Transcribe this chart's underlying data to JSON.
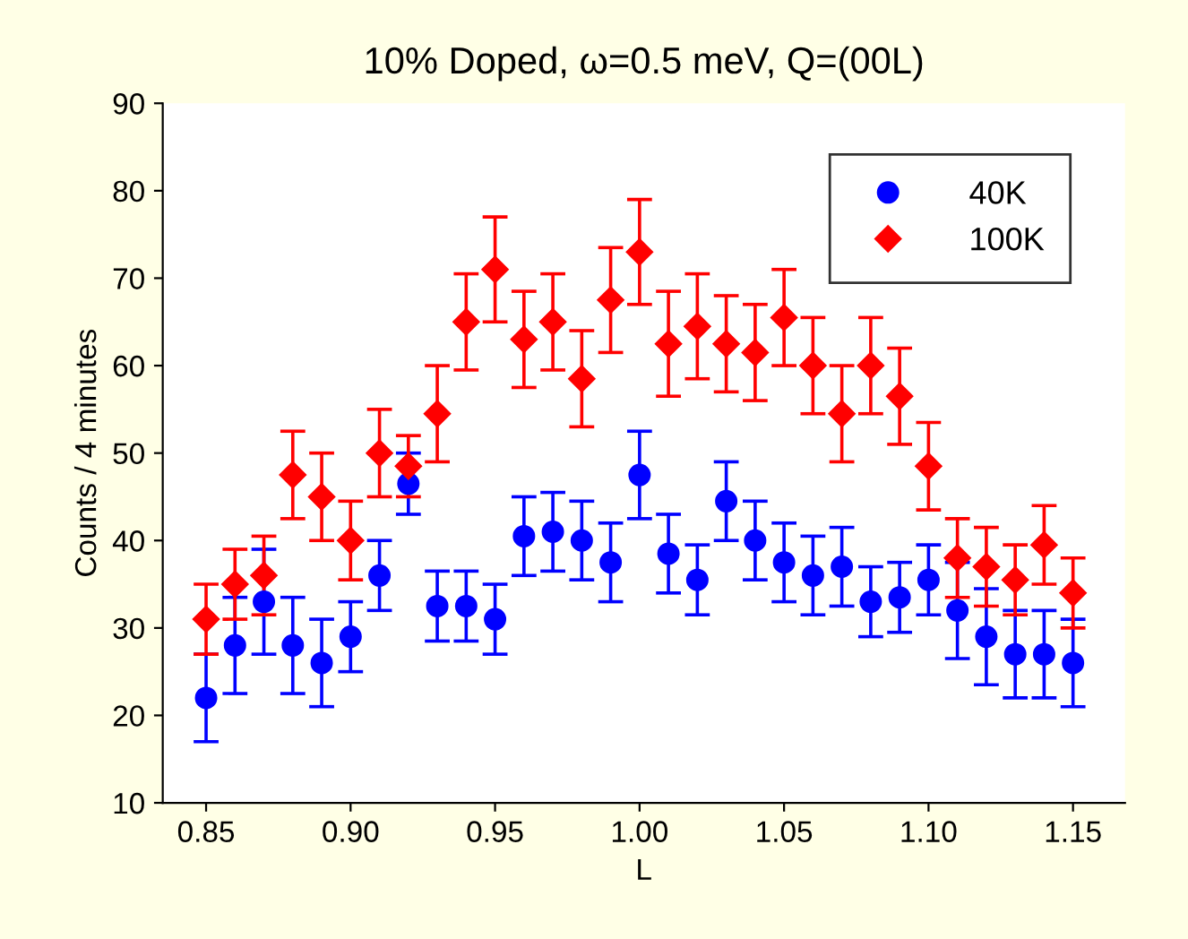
{
  "chart_data": {
    "type": "scatter",
    "title": "10% Doped, ω=0.5 meV, Q=(00L)",
    "xlabel": "L",
    "ylabel": "Counts / 4 minutes",
    "x": [
      0.85,
      0.86,
      0.87,
      0.88,
      0.89,
      0.9,
      0.91,
      0.92,
      0.93,
      0.94,
      0.95,
      0.96,
      0.97,
      0.98,
      0.99,
      1.0,
      1.01,
      1.02,
      1.03,
      1.04,
      1.05,
      1.06,
      1.07,
      1.08,
      1.09,
      1.1,
      1.11,
      1.12,
      1.13,
      1.14,
      1.15
    ],
    "series": [
      {
        "name": "40K",
        "color": "#0000ff",
        "marker": "circle",
        "values": [
          22,
          28,
          33,
          28,
          26,
          29,
          36,
          46.5,
          32.5,
          32.5,
          31,
          40.5,
          41,
          40,
          37.5,
          47.5,
          38.5,
          35.5,
          44.5,
          40,
          37.5,
          36,
          37,
          33,
          33.5,
          35.5,
          32,
          29,
          27,
          27,
          26
        ],
        "errors": [
          5,
          5.5,
          6,
          5.5,
          5,
          4,
          4,
          3.5,
          4,
          4,
          4,
          4.5,
          4.5,
          4.5,
          4.5,
          5,
          4.5,
          4,
          4.5,
          4.5,
          4.5,
          4.5,
          4.5,
          4,
          4,
          4,
          5.5,
          5.5,
          5,
          5,
          5
        ]
      },
      {
        "name": "100K",
        "color": "#ff0000",
        "marker": "diamond",
        "values": [
          31,
          35,
          36,
          47.5,
          45,
          40,
          50,
          48.5,
          54.5,
          65,
          71,
          63,
          65,
          58.5,
          67.5,
          73,
          62.5,
          64.5,
          62.5,
          61.5,
          65.5,
          60,
          54.5,
          60,
          56.5,
          48.5,
          38,
          37,
          35.5,
          39.5,
          34
        ],
        "errors": [
          4,
          4,
          4.5,
          5,
          5,
          4.5,
          5,
          3.5,
          5.5,
          5.5,
          6,
          5.5,
          5.5,
          5.5,
          6,
          6,
          6,
          6,
          5.5,
          5.5,
          5.5,
          5.5,
          5.5,
          5.5,
          5.5,
          5,
          4.5,
          4.5,
          4,
          4.5,
          4
        ]
      }
    ],
    "xlim": [
      0.835,
      1.168
    ],
    "ylim": [
      10,
      90
    ],
    "xticks": [
      {
        "value": 0.85,
        "label": "0.85"
      },
      {
        "value": 0.9,
        "label": "0.90"
      },
      {
        "value": 0.95,
        "label": "0.95"
      },
      {
        "value": 1.0,
        "label": "1.00"
      },
      {
        "value": 1.05,
        "label": "1.05"
      },
      {
        "value": 1.1,
        "label": "1.10"
      },
      {
        "value": 1.15,
        "label": "1.15"
      }
    ],
    "yticks": [
      10,
      20,
      30,
      40,
      50,
      60,
      70,
      80,
      90
    ],
    "legend": "top right",
    "grid": false
  }
}
